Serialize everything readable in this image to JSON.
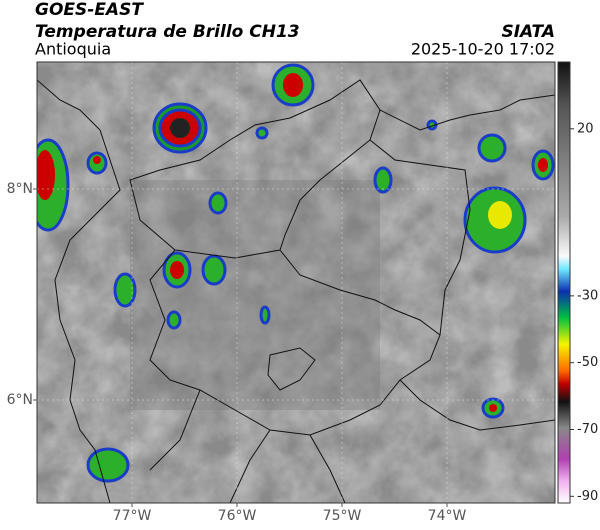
{
  "header": {
    "title": "GOES-EAST",
    "subtitle": "Temperatura de Brillo CH13",
    "region": "Antioquia",
    "source": "SIATA",
    "datetime": "2025-10-20 17:02"
  },
  "map": {
    "lat_labels": [
      "8°N",
      "6°N"
    ],
    "lon_labels": [
      "77°W",
      "76°W",
      "75°W",
      "74°W"
    ]
  },
  "colorbar": {
    "range": [
      -92,
      40
    ],
    "ticks": [
      20,
      -30,
      -50,
      -70,
      -90
    ]
  }
}
